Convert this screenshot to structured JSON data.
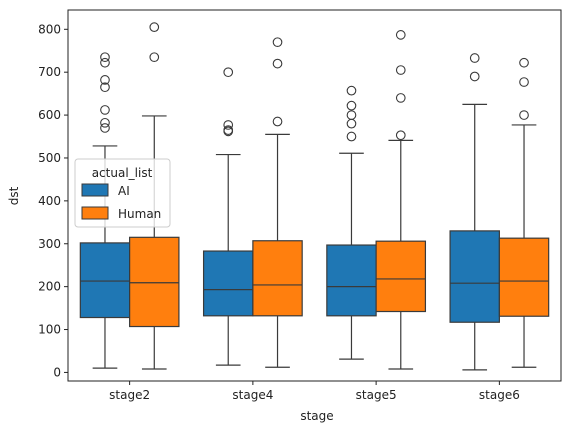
{
  "chart_data": {
    "type": "boxplot",
    "title": "",
    "xlabel": "stage",
    "ylabel": "dst",
    "categories": [
      "stage2",
      "stage4",
      "stage5",
      "stage6"
    ],
    "ylim": [
      -20,
      845
    ],
    "yticks": [
      0,
      100,
      200,
      300,
      400,
      500,
      600,
      700,
      800
    ],
    "grid": false,
    "legend": {
      "title": "actual_list",
      "position": "center-left"
    },
    "colors": {
      "AI": "#1f77b4",
      "Human": "#ff7f0e",
      "line": "#3a3a3a"
    },
    "series": [
      {
        "name": "AI",
        "boxes": [
          {
            "whislo": 10,
            "q1": 128,
            "med": 213,
            "q3": 302,
            "whishi": 528,
            "fliers": [
              570,
              582,
              612,
              665,
              682,
              722,
              735
            ]
          },
          {
            "whislo": 17,
            "q1": 132,
            "med": 193,
            "q3": 283,
            "whishi": 508,
            "fliers": [
              562,
              565,
              577,
              700
            ]
          },
          {
            "whislo": 31,
            "q1": 132,
            "med": 200,
            "q3": 297,
            "whishi": 511,
            "fliers": [
              550,
              580,
              600,
              622,
              657
            ]
          },
          {
            "whislo": 6,
            "q1": 117,
            "med": 208,
            "q3": 330,
            "whishi": 625,
            "fliers": [
              690,
              733
            ]
          }
        ]
      },
      {
        "name": "Human",
        "boxes": [
          {
            "whislo": 8,
            "q1": 107,
            "med": 209,
            "q3": 315,
            "whishi": 598,
            "fliers": [
              735,
              805
            ]
          },
          {
            "whislo": 12,
            "q1": 132,
            "med": 204,
            "q3": 307,
            "whishi": 555,
            "fliers": [
              585,
              720,
              770
            ]
          },
          {
            "whislo": 8,
            "q1": 142,
            "med": 218,
            "q3": 306,
            "whishi": 541,
            "fliers": [
              553,
              640,
              705,
              787
            ]
          },
          {
            "whislo": 12,
            "q1": 131,
            "med": 213,
            "q3": 313,
            "whishi": 577,
            "fliers": [
              600,
              677,
              722
            ]
          }
        ]
      }
    ]
  }
}
